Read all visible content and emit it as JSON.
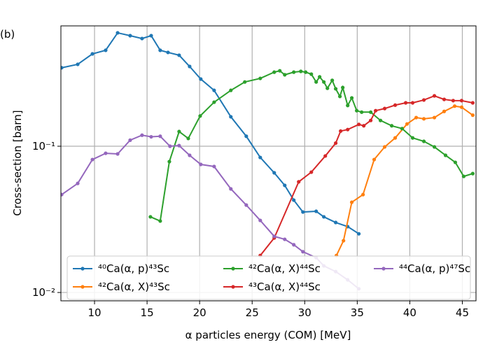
{
  "chart_data": {
    "type": "line",
    "annotation": "(b)",
    "x_label": "α particles energy (COM) [MeV]",
    "y_label": "Cross-section [barn]",
    "y_log": true,
    "grid": true,
    "legend_loc": "lower",
    "legend_columns": 3,
    "xlim": [
      6.8,
      46.3
    ],
    "ylim": [
      0.00877,
      0.665
    ],
    "xticks": [
      10,
      15,
      20,
      25,
      30,
      35,
      40,
      45
    ],
    "yticks": [
      {
        "value": 0.01,
        "label": "10⁻²"
      },
      {
        "value": 0.1,
        "label": "10⁻¹"
      }
    ],
    "series": [
      {
        "name": "⁴⁰Ca(α, p)⁴³Sc",
        "color": "#1f77b4",
        "x": [
          6.87,
          8.4,
          9.8,
          11.06,
          12.2,
          13.39,
          14.52,
          15.39,
          16.25,
          16.99,
          18.05,
          19.05,
          20.11,
          21.38,
          22.97,
          24.44,
          25.77,
          27.1,
          28.1,
          28.96,
          29.83,
          31.09,
          31.82,
          32.95,
          34.09,
          35.15
        ],
        "values": [
          0.344,
          0.363,
          0.428,
          0.453,
          0.596,
          0.57,
          0.545,
          0.57,
          0.453,
          0.438,
          0.419,
          0.351,
          0.288,
          0.241,
          0.159,
          0.117,
          0.0838,
          0.0658,
          0.054,
          0.0428,
          0.0355,
          0.0359,
          0.0329,
          0.0301,
          0.0282,
          0.0252
        ]
      },
      {
        "name": "⁴²Ca(α, X)⁴³Sc",
        "color": "#ff7f0e",
        "x": [
          33.02,
          33.69,
          34.48,
          35.55,
          36.61,
          37.61,
          38.61,
          39.74,
          40.61,
          41.34,
          42.34,
          43.27,
          44.27,
          44.93,
          45.99
        ],
        "values": [
          0.0179,
          0.0226,
          0.0414,
          0.0467,
          0.0811,
          0.0989,
          0.114,
          0.142,
          0.157,
          0.154,
          0.157,
          0.173,
          0.188,
          0.185,
          0.163
        ]
      },
      {
        "name": "⁴²Ca(α, X)⁴⁴Sc",
        "color": "#2ca02c",
        "x": [
          15.32,
          16.25,
          17.12,
          18.05,
          18.92,
          20.05,
          21.38,
          22.97,
          24.3,
          25.77,
          27.1,
          27.63,
          28.1,
          28.96,
          29.63,
          30.09,
          30.63,
          31.09,
          31.42,
          31.82,
          32.16,
          32.62,
          32.95,
          33.35,
          33.62,
          34.09,
          34.48,
          34.95,
          35.42,
          36.28,
          37.21,
          38.28,
          39.27,
          40.27,
          41.34,
          42.34,
          43.4,
          44.33,
          45.13,
          45.99
        ],
        "values": [
          0.0329,
          0.0308,
          0.0785,
          0.126,
          0.113,
          0.161,
          0.2,
          0.241,
          0.275,
          0.291,
          0.321,
          0.328,
          0.308,
          0.321,
          0.325,
          0.321,
          0.311,
          0.275,
          0.298,
          0.275,
          0.249,
          0.282,
          0.247,
          0.219,
          0.252,
          0.19,
          0.214,
          0.175,
          0.171,
          0.171,
          0.15,
          0.138,
          0.132,
          0.114,
          0.108,
          0.0989,
          0.0867,
          0.0776,
          0.0622,
          0.065
        ]
      },
      {
        "name": "⁴³Ca(α, X)⁴⁴Sc",
        "color": "#d62728",
        "x": [
          25.77,
          27.1,
          29.43,
          30.63,
          31.96,
          32.95,
          33.42,
          34.09,
          35.15,
          35.62,
          36.28,
          36.75,
          37.61,
          38.61,
          39.61,
          40.27,
          41.34,
          42.34,
          43.27,
          44.13,
          44.93,
          45.99
        ],
        "values": [
          0.0179,
          0.0236,
          0.0571,
          0.0665,
          0.0858,
          0.105,
          0.127,
          0.13,
          0.141,
          0.138,
          0.15,
          0.175,
          0.181,
          0.191,
          0.198,
          0.198,
          0.207,
          0.221,
          0.209,
          0.205,
          0.205,
          0.198
        ]
      },
      {
        "name": "⁴⁴Ca(α, p)⁴⁷Sc",
        "color": "#9467bd",
        "x": [
          6.87,
          8.4,
          9.8,
          11.06,
          12.2,
          13.39,
          14.52,
          15.39,
          16.25,
          17.18,
          18.05,
          19.05,
          20.11,
          21.38,
          22.97,
          24.44,
          25.77,
          27.1,
          28.1,
          28.96,
          29.83,
          31.09,
          31.82,
          32.95,
          34.09,
          35.15
        ],
        "values": [
          0.0467,
          0.0557,
          0.0811,
          0.0895,
          0.0886,
          0.11,
          0.119,
          0.116,
          0.117,
          0.1,
          0.101,
          0.0867,
          0.0751,
          0.0727,
          0.0511,
          0.0396,
          0.0311,
          0.0242,
          0.0231,
          0.0212,
          0.019,
          0.0173,
          0.0152,
          0.0139,
          0.0122,
          0.0106
        ]
      }
    ]
  }
}
